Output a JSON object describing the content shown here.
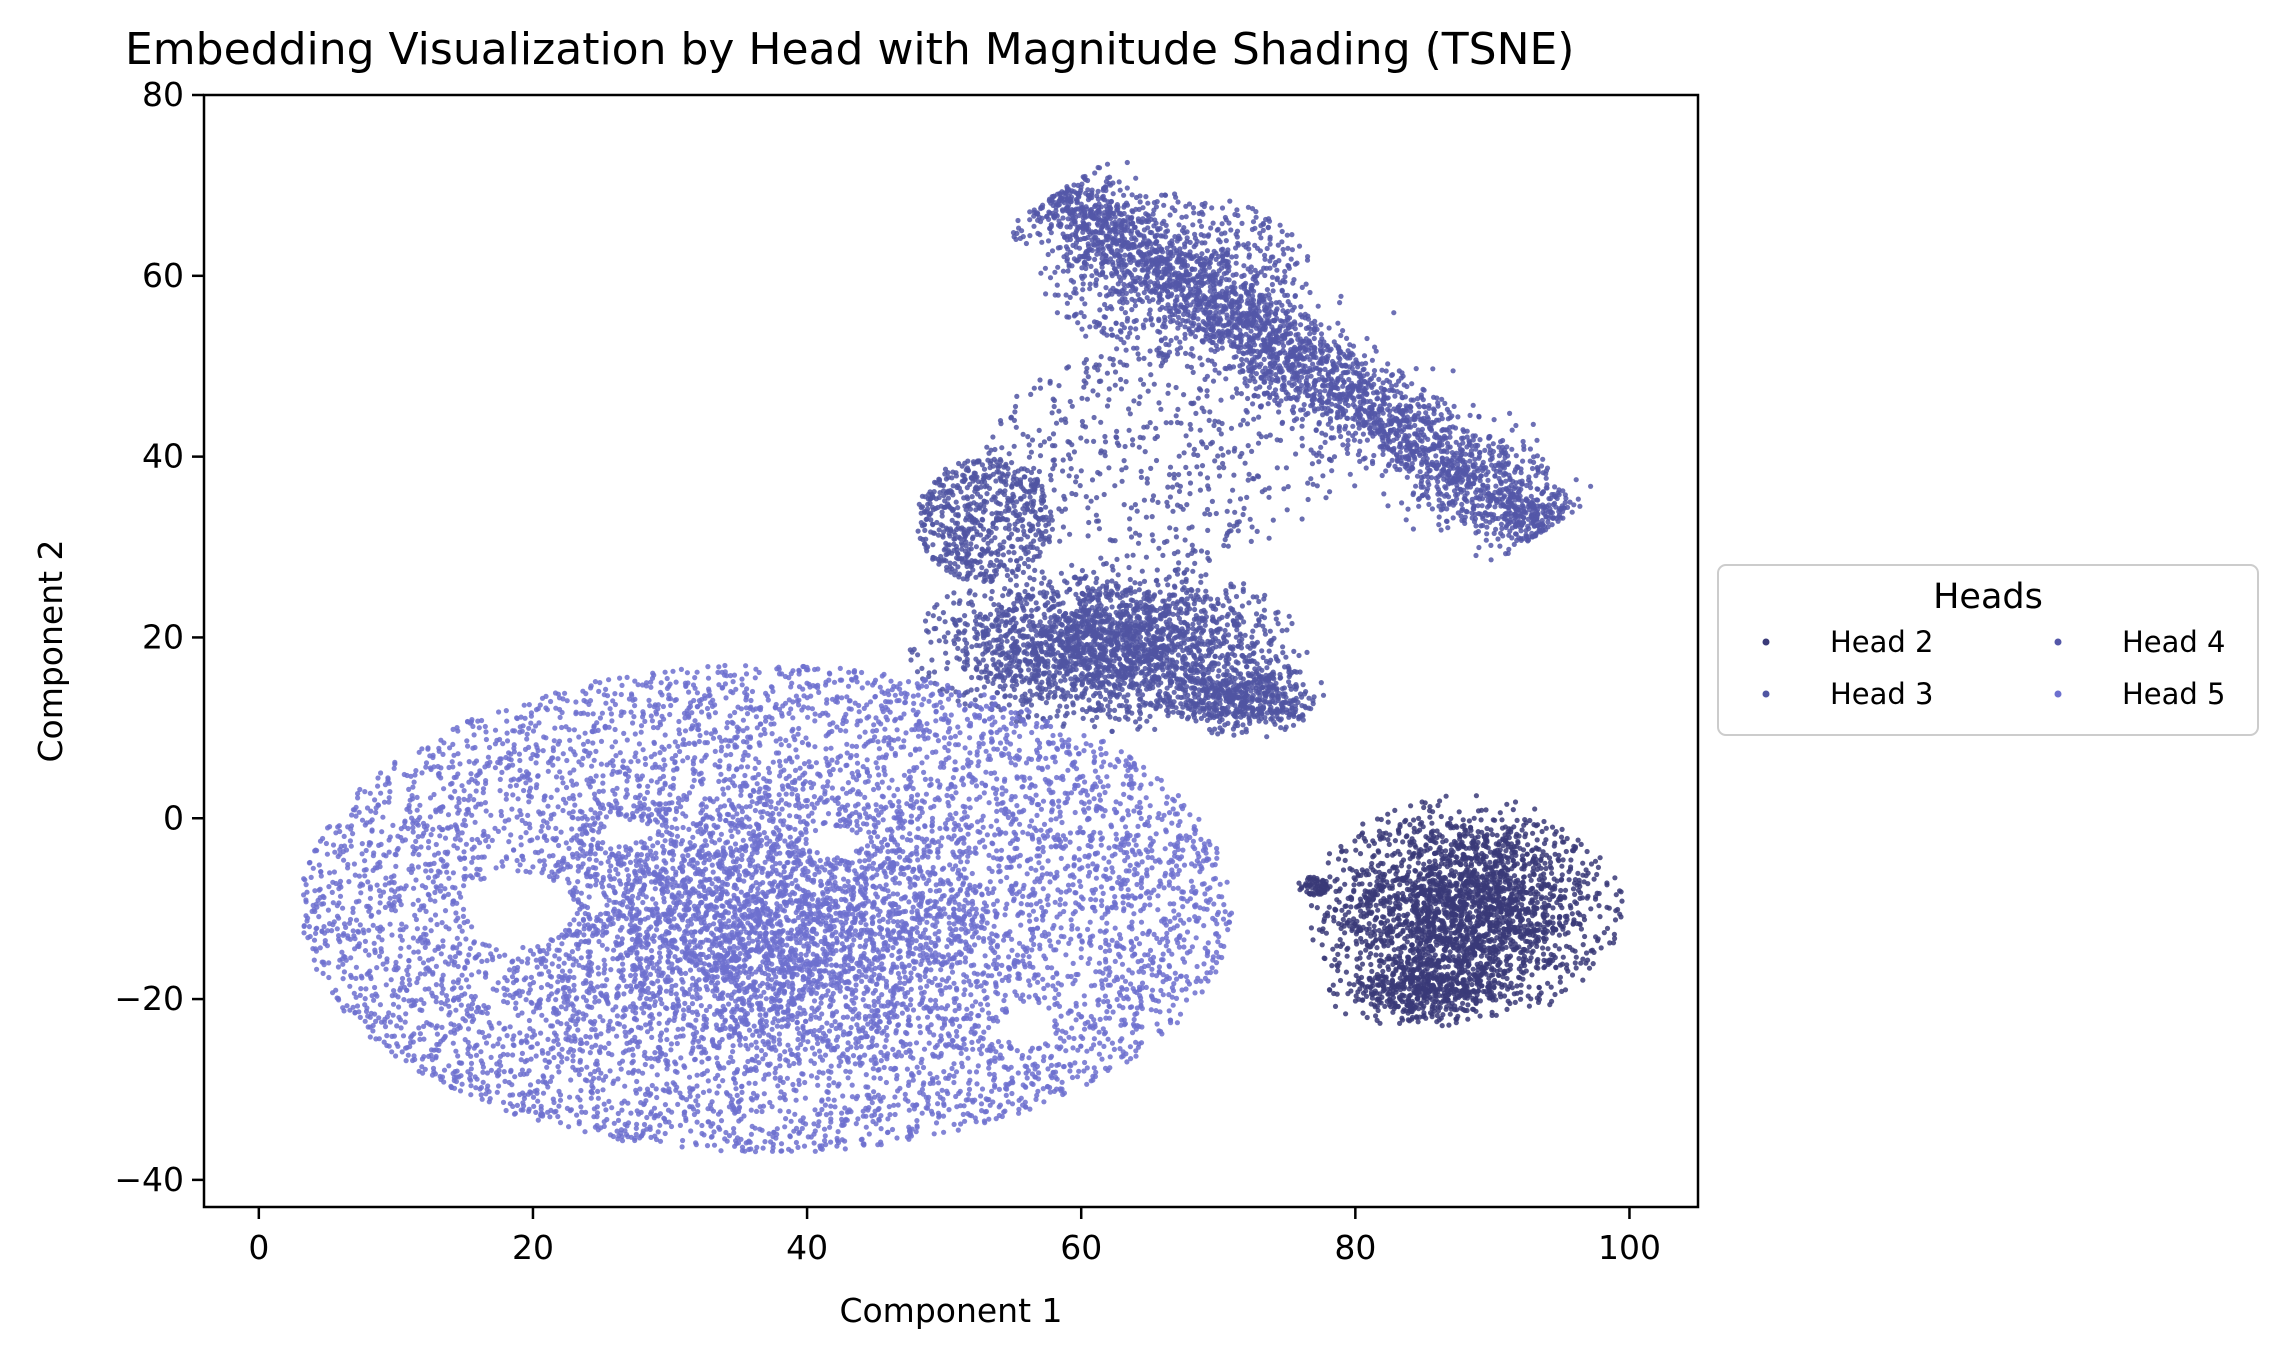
{
  "chart_data": {
    "type": "scatter",
    "title": "Embedding Visualization by Head with Magnitude Shading (TSNE)",
    "xlabel": "Component 1",
    "ylabel": "Component 2",
    "xlim": [
      -4,
      105
    ],
    "ylim": [
      -43,
      80
    ],
    "xticks": [
      0,
      20,
      40,
      60,
      80,
      100
    ],
    "yticks": [
      -40,
      -20,
      0,
      20,
      40,
      60,
      80
    ],
    "grid": false,
    "legend": {
      "title": "Heads",
      "placement": "outside-right",
      "columns": 2,
      "entries": [
        "Head 2",
        "Head 3",
        "Head 4",
        "Head 5"
      ]
    },
    "series": [
      {
        "name": "Head 2",
        "color": "#3a3a78",
        "clusters": [
          {
            "shape": "ellipse",
            "cx": 88,
            "cy": -10,
            "rx": 11,
            "ry": 12,
            "n": 2600,
            "dist": "gauss"
          },
          {
            "shape": "ellipse",
            "cx": 85,
            "cy": -19,
            "rx": 7,
            "ry": 4,
            "n": 500,
            "dist": "gauss"
          },
          {
            "shape": "ellipse",
            "cx": 77,
            "cy": -7.5,
            "rx": 1.2,
            "ry": 1,
            "n": 60,
            "dist": "uniform"
          }
        ]
      },
      {
        "name": "Head 3",
        "color": "#5055a2",
        "clusters": [
          {
            "shape": "ellipse",
            "cx": 62,
            "cy": 19,
            "rx": 14,
            "ry": 9,
            "n": 2600,
            "dist": "gauss"
          },
          {
            "shape": "ellipse",
            "cx": 72,
            "cy": 13,
            "rx": 6,
            "ry": 4,
            "n": 500,
            "dist": "gauss"
          },
          {
            "shape": "ellipse",
            "cx": 53,
            "cy": 33,
            "rx": 5,
            "ry": 7,
            "n": 600,
            "dist": "uniform"
          },
          {
            "shape": "ellipse",
            "cx": 66,
            "cy": 40,
            "rx": 13,
            "ry": 12,
            "n": 500,
            "dist": "uniform"
          }
        ]
      },
      {
        "name": "Head 4",
        "color": "#5457a8",
        "clusters": [
          {
            "shape": "band",
            "x1": 58,
            "y1": 69,
            "x2": 94,
            "y2": 32,
            "width": 5,
            "n": 3200,
            "dist": "gauss"
          },
          {
            "shape": "ellipse",
            "cx": 67,
            "cy": 60,
            "rx": 10,
            "ry": 9,
            "n": 500,
            "dist": "uniform"
          }
        ]
      },
      {
        "name": "Head 5",
        "color": "#6d70cf",
        "clusters": [
          {
            "shape": "ellipse",
            "cx": 37,
            "cy": -10,
            "rx": 34,
            "ry": 27,
            "n": 7000,
            "dist": "uniform"
          },
          {
            "shape": "ellipse",
            "cx": 37,
            "cy": -12,
            "rx": 20,
            "ry": 16,
            "n": 2500,
            "dist": "gauss"
          }
        ],
        "holes": [
          {
            "cx": 19,
            "cy": -10,
            "rx": 4,
            "ry": 4
          },
          {
            "cx": 27,
            "cy": -1.5,
            "rx": 1.8,
            "ry": 1.2
          },
          {
            "cx": 42,
            "cy": -2.5,
            "rx": 2,
            "ry": 1.5
          },
          {
            "cx": 56,
            "cy": -23,
            "rx": 1.8,
            "ry": 2.5
          }
        ]
      }
    ]
  }
}
